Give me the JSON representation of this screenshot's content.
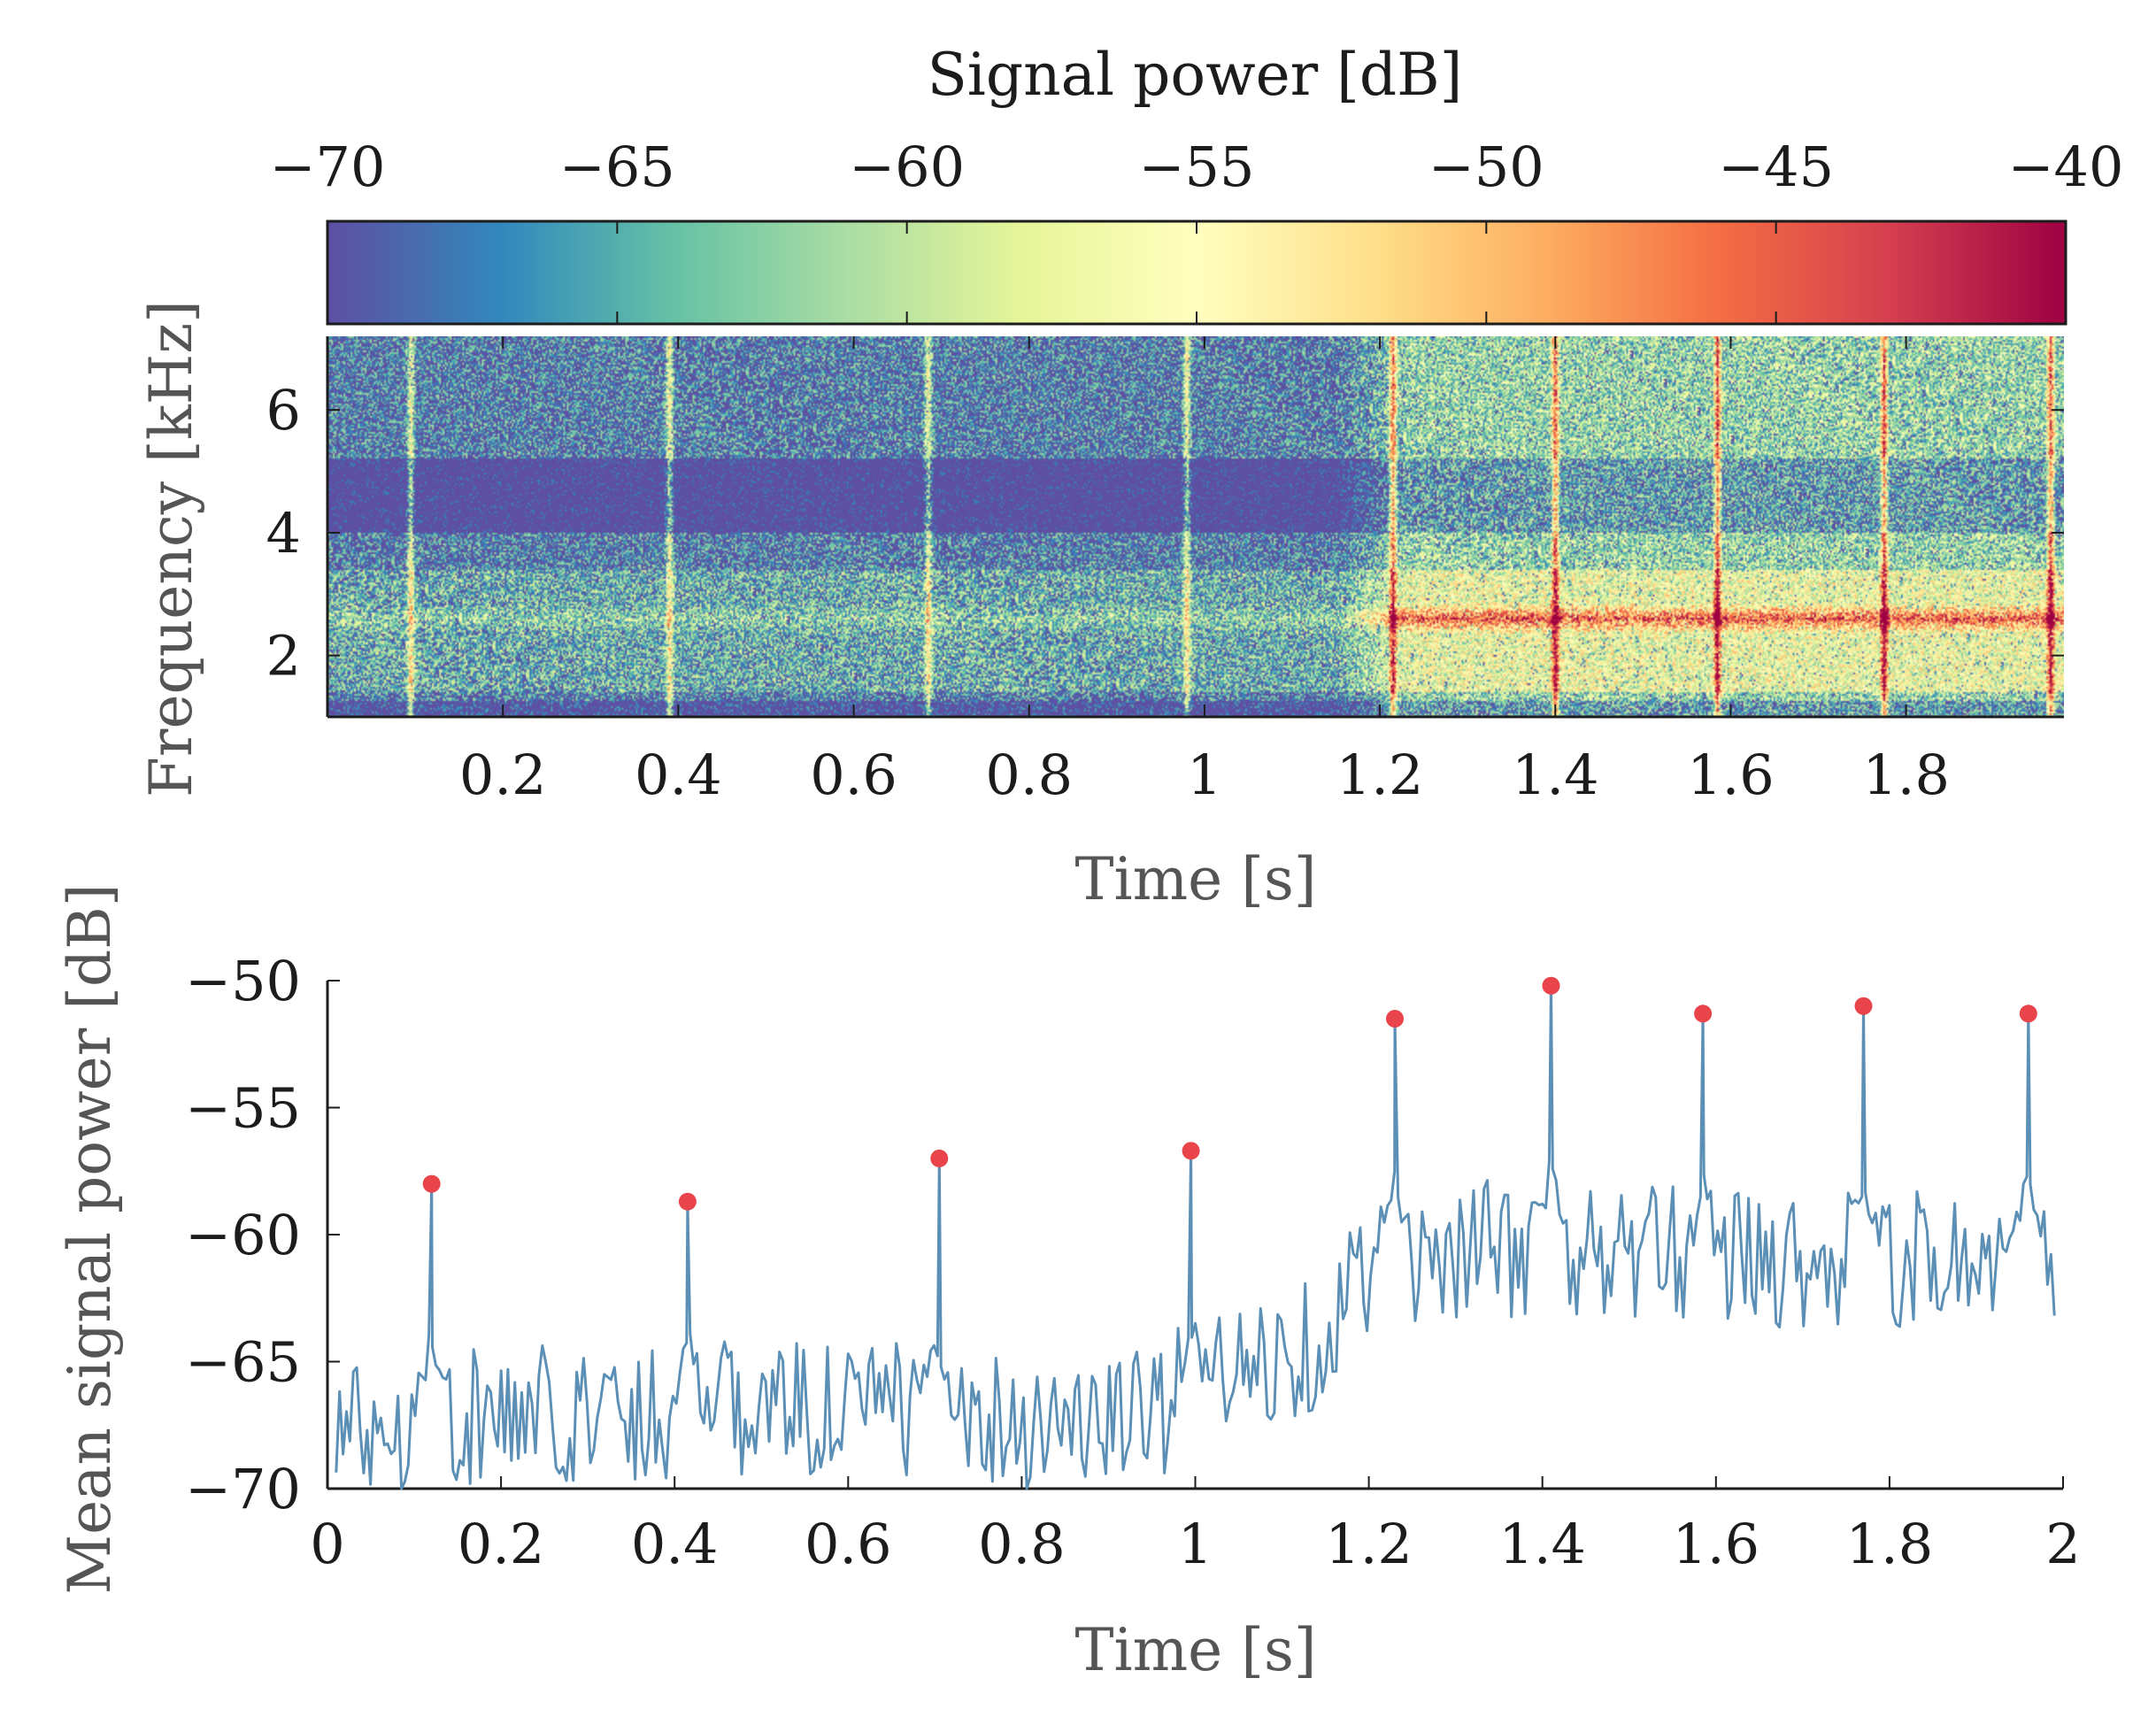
{
  "colors": {
    "line": "#5b8fb5",
    "peak_marker": "#e8444a",
    "axis": "#1c1c1c",
    "colormap": [
      "#5e4fa2",
      "#3288bd",
      "#66c2a5",
      "#abdda4",
      "#e6f598",
      "#fffebf",
      "#fee08b",
      "#fdae61",
      "#f46d43",
      "#d53e4f",
      "#9e0142"
    ]
  },
  "chart_data": [
    {
      "type": "heatmap",
      "name": "spectrogram",
      "colorbar": {
        "label": "Signal power [dB]",
        "range": [
          -70,
          -40
        ],
        "ticks": [
          -70,
          -65,
          -60,
          -55,
          -50,
          -45,
          -40
        ],
        "tick_labels": [
          "−70",
          "−65",
          "−60",
          "−55",
          "−50",
          "−45",
          "−40"
        ]
      },
      "xlabel": "Time [s]",
      "ylabel": "Frequency [kHz]",
      "xlim": [
        0.0,
        1.98
      ],
      "ylim": [
        1.0,
        7.2
      ],
      "xticks": [
        0.2,
        0.4,
        0.6,
        0.8,
        1.0,
        1.2,
        1.4,
        1.6,
        1.8
      ],
      "xtick_labels": [
        "0.2",
        "0.4",
        "0.6",
        "0.8",
        "1",
        "1.2",
        "1.4",
        "1.6",
        "1.8"
      ],
      "yticks": [
        2,
        4,
        6
      ],
      "ytick_labels": [
        "2",
        "4",
        "6"
      ],
      "event_times": [
        0.095,
        0.39,
        0.685,
        0.98,
        1.215,
        1.4,
        1.585,
        1.775,
        1.965
      ],
      "dark_band_khz": [
        4.0,
        5.2
      ],
      "bright_band_khz": 2.6,
      "activity_onset_s": 1.15
    },
    {
      "type": "line",
      "name": "mean-signal-power",
      "xlabel": "Time [s]",
      "ylabel": "Mean signal power [dB]",
      "xlim": [
        0,
        2
      ],
      "ylim": [
        -70,
        -50
      ],
      "xticks": [
        0,
        0.2,
        0.4,
        0.6,
        0.8,
        1.0,
        1.2,
        1.4,
        1.6,
        1.8,
        2.0
      ],
      "xtick_labels": [
        "0",
        "0.2",
        "0.4",
        "0.6",
        "0.8",
        "1",
        "1.2",
        "1.4",
        "1.6",
        "1.8",
        "2"
      ],
      "yticks": [
        -70,
        -65,
        -60,
        -55,
        -50
      ],
      "ytick_labels": [
        "−70",
        "−65",
        "−60",
        "−55",
        "−50"
      ],
      "baseline": {
        "x": [
          0.01,
          0.3,
          0.6,
          0.9,
          1.05,
          1.15,
          1.2,
          1.3,
          1.5,
          1.7,
          1.99
        ],
        "y": [
          -67.5,
          -67.0,
          -66.8,
          -67.5,
          -65.5,
          -64.0,
          -61.0,
          -60.5,
          -60.8,
          -61.0,
          -61.0
        ]
      },
      "peaks": {
        "x": [
          0.12,
          0.415,
          0.705,
          0.995,
          1.23,
          1.41,
          1.585,
          1.77,
          1.96
        ],
        "y": [
          -58.0,
          -58.7,
          -57.0,
          -56.7,
          -51.5,
          -50.2,
          -51.3,
          -51.0,
          -51.3
        ]
      }
    }
  ]
}
